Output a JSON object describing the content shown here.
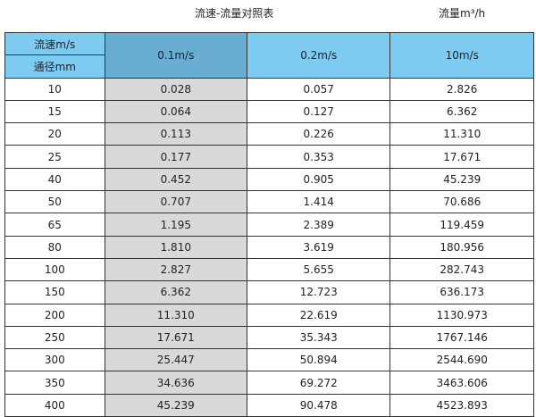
{
  "title": "流速-流量对照表",
  "unit": "流量m³/h",
  "header": {
    "velocity_label": "流速m/s",
    "diameter_label": "通径mm",
    "columns": [
      "0.1m/s",
      "0.2m/s",
      "10m/s"
    ]
  },
  "rows": [
    [
      "10",
      "0.028",
      "0.057",
      "2.826"
    ],
    [
      "15",
      "0.064",
      "0.127",
      "6.362"
    ],
    [
      "20",
      "0.113",
      "0.226",
      "11.310"
    ],
    [
      "25",
      "0.177",
      "0.353",
      "17.671"
    ],
    [
      "40",
      "0.452",
      "0.905",
      "45.239"
    ],
    [
      "50",
      "0.707",
      "1.414",
      "70.686"
    ],
    [
      "65",
      "1.195",
      "2.389",
      "119.459"
    ],
    [
      "80",
      "1.810",
      "3.619",
      "180.956"
    ],
    [
      "100",
      "2.827",
      "5.655",
      "282.743"
    ],
    [
      "150",
      "6.362",
      "12.723",
      "636.173"
    ],
    [
      "200",
      "11.310",
      "22.619",
      "1130.973"
    ],
    [
      "250",
      "17.671",
      "35.343",
      "1767.146"
    ],
    [
      "300",
      "25.447",
      "50.894",
      "2544.690"
    ],
    [
      "350",
      "34.636",
      "69.272",
      "3463.606"
    ],
    [
      "400",
      "45.239",
      "90.478",
      "4523.893"
    ]
  ],
  "colors": {
    "header": "#7ecbf2",
    "header_selected": "#6aadd3",
    "highlight_column": "#d9d9d9"
  }
}
